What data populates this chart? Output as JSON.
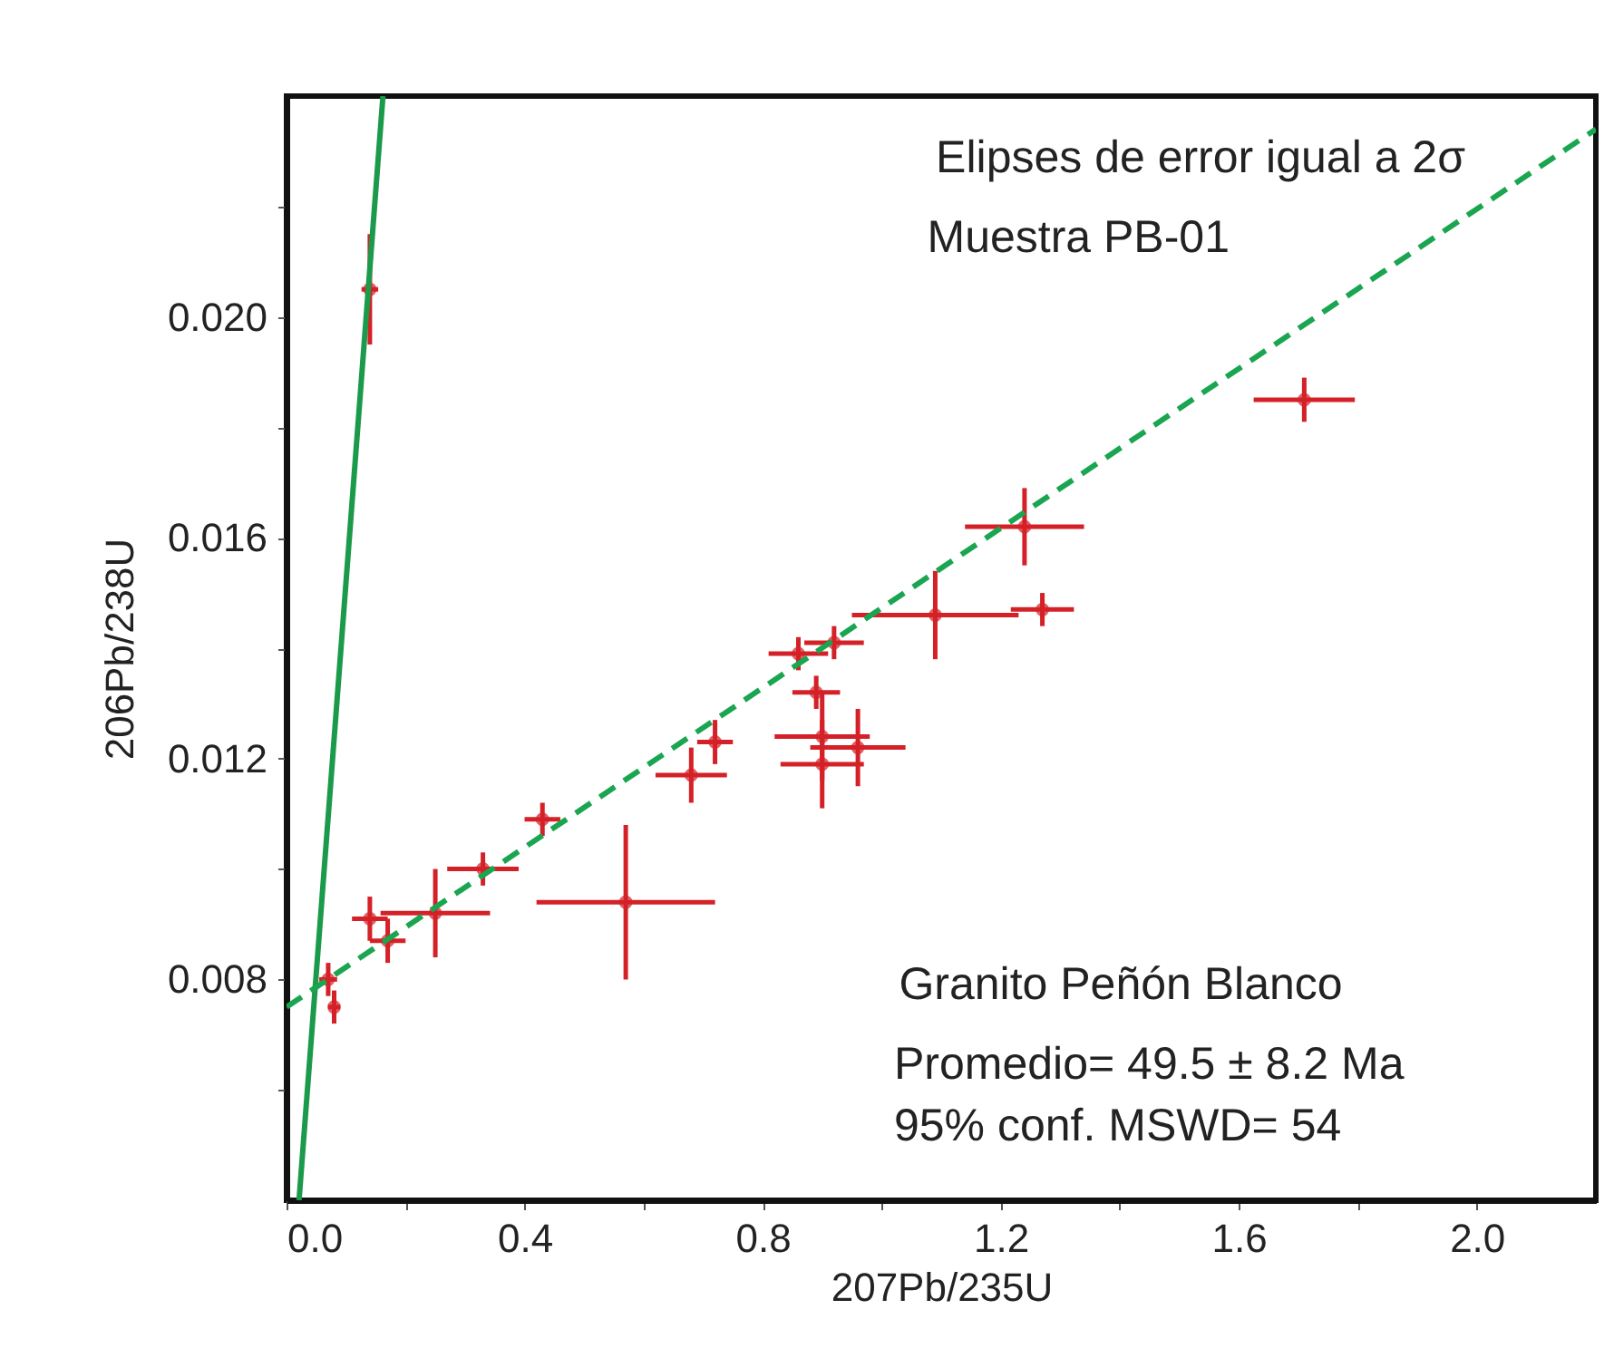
{
  "chart_data": {
    "type": "scatter",
    "xlabel": "207Pb/235U",
    "ylabel": "206Pb/238U",
    "xlim": [
      0,
      2.2
    ],
    "ylim": [
      0.004,
      0.024
    ],
    "xticks": [
      {
        "value": 0,
        "label": "0.0"
      },
      {
        "value": 0.2,
        "label": null
      },
      0.4,
      {
        "value": 0.6,
        "label": null
      },
      0.8,
      {
        "value": 1.0,
        "label": null
      },
      1.2,
      {
        "value": 1.4,
        "label": null
      },
      1.6,
      {
        "value": 1.8,
        "label": null
      },
      {
        "value": 2.0,
        "label": "2.0"
      }
    ],
    "yticks": [
      {
        "value": 0.006,
        "label": null
      },
      0.008,
      {
        "value": 0.01,
        "label": null
      },
      0.012,
      {
        "value": 0.014,
        "label": null
      },
      0.016,
      {
        "value": 0.018,
        "label": null
      },
      {
        "value": 0.02,
        "label": "0.020"
      },
      {
        "value": 0.022,
        "label": null
      }
    ],
    "grid": false,
    "marker": "circle",
    "annotations": [
      "Elipses de error igual a 2σ",
      "Muestra PB-01",
      "Granito Peñón Blanco",
      "Promedio= 49.5 ± 8.2 Ma",
      "95% conf. MSWD= 54"
    ],
    "series": [
      {
        "color": "#d42027",
        "x": [
          0.14,
          1.71,
          1.24,
          1.27,
          1.09,
          0.57,
          0.25,
          0.68,
          0.72,
          0.43,
          0.33,
          0.14,
          0.17,
          0.07,
          0.08,
          0.9,
          0.96,
          0.9,
          0.89,
          0.86,
          0.92
        ],
        "values": [
          0.0205,
          0.0185,
          0.0162,
          0.0147,
          0.0146,
          0.0094,
          0.0092,
          0.0117,
          0.0123,
          0.0109,
          0.01,
          0.0091,
          0.0087,
          0.008,
          0.0075,
          0.0124,
          0.0122,
          0.0119,
          0.0132,
          0.0139,
          0.0141
        ],
        "xerrors": [
          0.014,
          0.085,
          0.1,
          0.053,
          0.14,
          0.15,
          0.092,
          0.06,
          0.03,
          0.03,
          0.06,
          0.03,
          0.03,
          0.015,
          0.01,
          0.08,
          0.08,
          0.07,
          0.04,
          0.05,
          0.05
        ],
        "errors": [
          0.001,
          0.0004,
          0.0007,
          0.0003,
          0.0008,
          0.0014,
          0.0008,
          0.0005,
          0.0004,
          0.0003,
          0.0003,
          0.0004,
          0.0004,
          0.0003,
          0.0003,
          0.0008,
          0.0007,
          0.0008,
          0.0003,
          0.0003,
          0.0003
        ]
      },
      {
        "type": "line",
        "color": "#1a9a4a",
        "line_style": "solid",
        "marker": "none",
        "x": [
          0.021,
          0.162
        ],
        "values": [
          0.004,
          0.024
        ]
      },
      {
        "type": "line",
        "color": "#1aa550",
        "line_style": "dashed",
        "marker": "none",
        "x": [
          0,
          2.2
        ],
        "values": [
          0.0075,
          0.0234
        ]
      }
    ]
  }
}
